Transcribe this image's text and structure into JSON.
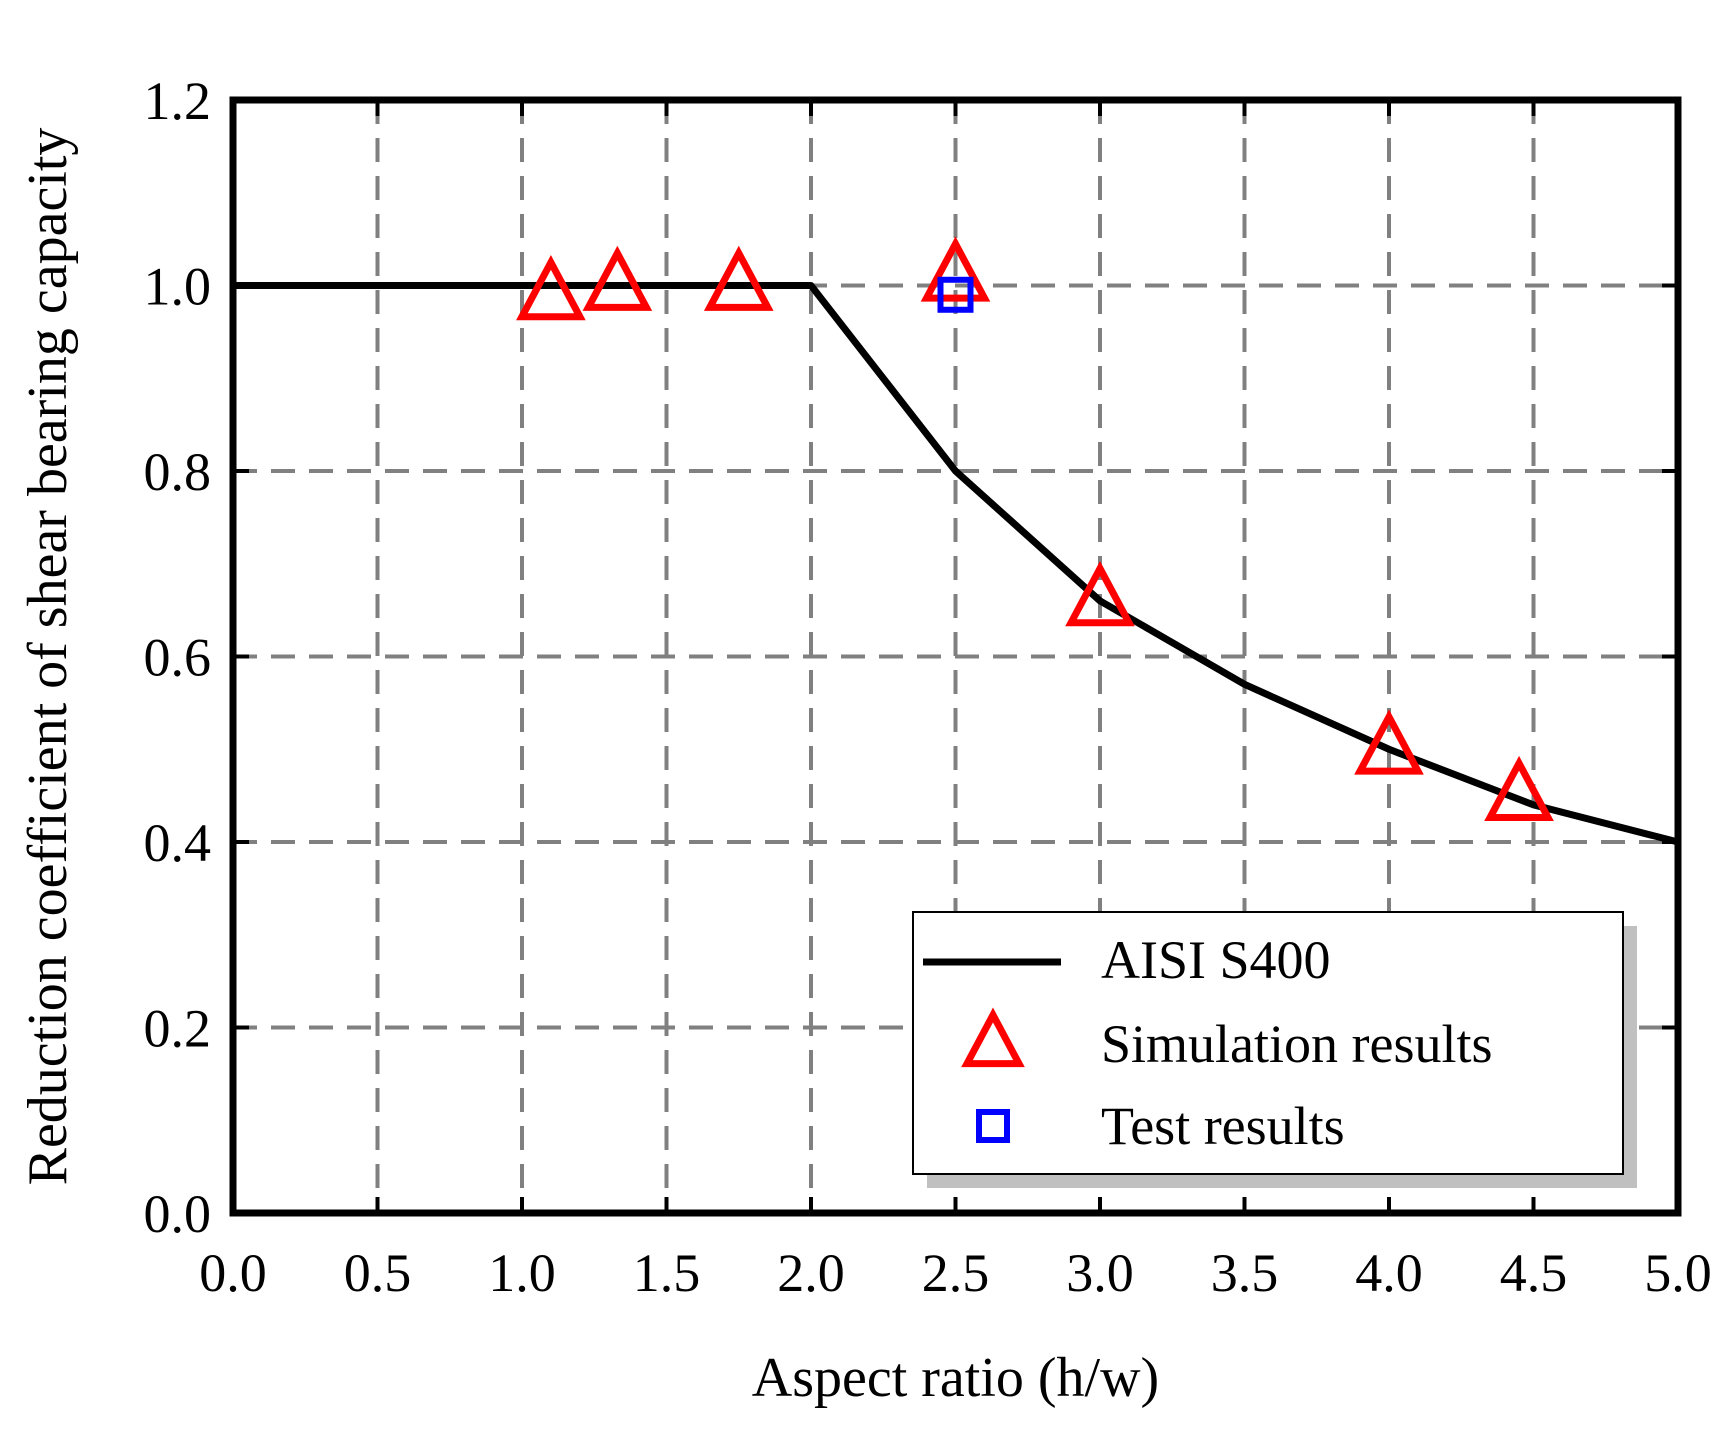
{
  "chart_data": {
    "type": "line",
    "title": "",
    "xlabel": "Aspect ratio (h/w)",
    "ylabel": "Reduction coefficient of shear bearing capacity",
    "xlim": [
      0.0,
      5.0
    ],
    "ylim": [
      0.0,
      1.2
    ],
    "grid": true,
    "legend_position": "bottom-right",
    "x_ticks": [
      "0.0",
      "0.5",
      "1.0",
      "1.5",
      "2.0",
      "2.5",
      "3.0",
      "3.5",
      "4.0",
      "4.5",
      "5.0"
    ],
    "y_ticks": [
      "0.0",
      "0.2",
      "0.4",
      "0.6",
      "0.8",
      "1.0",
      "1.2"
    ],
    "series": [
      {
        "name": "AISI S400",
        "kind": "line",
        "color": "#000000",
        "x": [
          0.0,
          2.0,
          2.5,
          3.0,
          3.5,
          4.0,
          4.5,
          5.0
        ],
        "y": [
          1.0,
          1.0,
          0.8,
          0.66,
          0.57,
          0.5,
          0.44,
          0.4
        ]
      },
      {
        "name": "Simulation results",
        "kind": "marker",
        "marker": "triangle",
        "color": "#ff0000",
        "x": [
          1.1,
          1.33,
          1.75,
          2.5,
          3.0,
          4.0,
          4.45
        ],
        "y": [
          0.99,
          1.0,
          1.0,
          1.01,
          0.66,
          0.5,
          0.45
        ]
      },
      {
        "name": "Test results",
        "kind": "marker",
        "marker": "square",
        "color": "#0000ff",
        "x": [
          2.5
        ],
        "y": [
          0.99
        ]
      }
    ]
  }
}
